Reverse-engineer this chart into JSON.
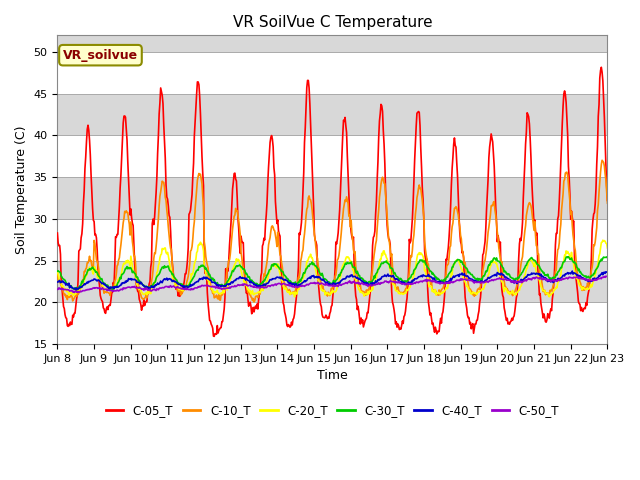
{
  "title": "VR SoilVue C Temperature",
  "ylabel": "Soil Temperature (C)",
  "xlabel": "Time",
  "annotation": "VR_soilvue",
  "ylim": [
    15,
    52
  ],
  "yticks": [
    15,
    20,
    25,
    30,
    35,
    40,
    45,
    50
  ],
  "xlim_days": [
    8,
    23
  ],
  "xtick_labels": [
    "Jun 8",
    "Jun 9",
    "Jun 10",
    "Jun 11",
    "Jun 12",
    "Jun 13",
    "Jun 14",
    "Jun 15",
    "Jun 16",
    "Jun 17",
    "Jun 18",
    "Jun 19",
    "Jun 20",
    "Jun 21",
    "Jun 22",
    "Jun 23"
  ],
  "series": {
    "C-05_T": {
      "color": "#ff0000"
    },
    "C-10_T": {
      "color": "#ff8c00"
    },
    "C-20_T": {
      "color": "#ffff00"
    },
    "C-30_T": {
      "color": "#00cc00"
    },
    "C-40_T": {
      "color": "#0000cc"
    },
    "C-50_T": {
      "color": "#9900cc"
    }
  },
  "plot_bg": "#e8e8e8",
  "band_light": "#e8e8e8",
  "band_dark": "#d0d0d0",
  "linewidth": 1.2
}
